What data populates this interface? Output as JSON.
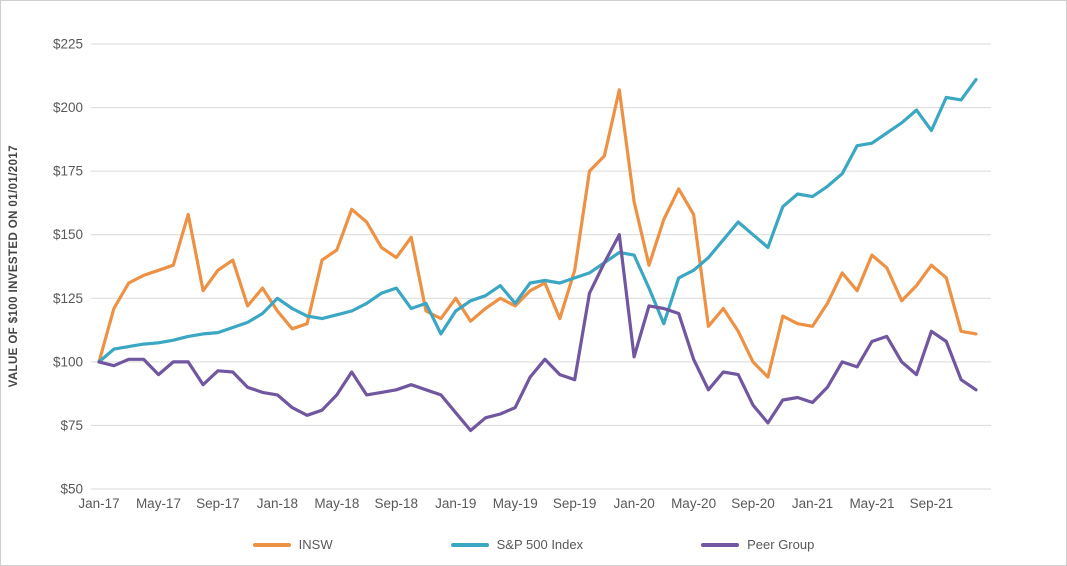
{
  "chart_data": {
    "type": "line",
    "title": "",
    "ylabel": "VALUE OF $100 INVESTED ON 01/01/2017",
    "xlabel": "",
    "ylim": [
      50,
      225
    ],
    "y_ticks": [
      225,
      200,
      175,
      150,
      125,
      100,
      75,
      50
    ],
    "y_tick_prefix": "$",
    "grid": true,
    "legend_position": "bottom",
    "grid_color": "#d9d9d9",
    "axis_text_color": "#595959",
    "x_tick_labels": [
      "Jan-17",
      "May-17",
      "Sep-17",
      "Jan-18",
      "May-18",
      "Sep-18",
      "Jan-19",
      "May-19",
      "Sep-19",
      "Jan-20",
      "May-20",
      "Sep-20",
      "Jan-21",
      "May-21",
      "Sep-21"
    ],
    "categories": [
      "Jan-17",
      "Feb-17",
      "Mar-17",
      "Apr-17",
      "May-17",
      "Jun-17",
      "Jul-17",
      "Aug-17",
      "Sep-17",
      "Oct-17",
      "Nov-17",
      "Dec-17",
      "Jan-18",
      "Feb-18",
      "Mar-18",
      "Apr-18",
      "May-18",
      "Jun-18",
      "Jul-18",
      "Aug-18",
      "Sep-18",
      "Oct-18",
      "Nov-18",
      "Dec-18",
      "Jan-19",
      "Feb-19",
      "Mar-19",
      "Apr-19",
      "May-19",
      "Jun-19",
      "Jul-19",
      "Aug-19",
      "Sep-19",
      "Oct-19",
      "Nov-19",
      "Dec-19",
      "Jan-20",
      "Feb-20",
      "Mar-20",
      "Apr-20",
      "May-20",
      "Jun-20",
      "Jul-20",
      "Aug-20",
      "Sep-20",
      "Oct-20",
      "Nov-20",
      "Dec-20",
      "Jan-21",
      "Feb-21",
      "Mar-21",
      "Apr-21",
      "May-21",
      "Jun-21",
      "Jul-21",
      "Aug-21",
      "Sep-21",
      "Oct-21",
      "Nov-21",
      "Dec-21"
    ],
    "series": [
      {
        "name": "INSW",
        "color": "#ED9144",
        "values": [
          100,
          121,
          131,
          134,
          136,
          138,
          158,
          128,
          136,
          140,
          122,
          129,
          120,
          113,
          115,
          140,
          144,
          160,
          155,
          145,
          141,
          149,
          120,
          117,
          125,
          116,
          121,
          125,
          122,
          128,
          131,
          117,
          136,
          175,
          181,
          207,
          163,
          138,
          156,
          168,
          158,
          114,
          121,
          112,
          100,
          94,
          118,
          115,
          114,
          123,
          135,
          128,
          142,
          137,
          124,
          130,
          138,
          133,
          112,
          111
        ]
      },
      {
        "name": "S&P 500 Index",
        "color": "#3BA7C2",
        "values": [
          100,
          105,
          106,
          107,
          107.5,
          108.5,
          110,
          111,
          111.5,
          113.5,
          115.5,
          119,
          125,
          121,
          118,
          117,
          118.5,
          120,
          123,
          127,
          129,
          121,
          123,
          111,
          120,
          124,
          126,
          130,
          123,
          131,
          132,
          131,
          133,
          135,
          139,
          143,
          142,
          129,
          115,
          133,
          136,
          141,
          148,
          155,
          150,
          145,
          161,
          166,
          165,
          169,
          174,
          185,
          186,
          190,
          194,
          199,
          191,
          204,
          203,
          211
        ]
      },
      {
        "name": "Peer Group",
        "color": "#7156A0",
        "values": [
          100,
          98.5,
          101,
          101,
          95,
          100,
          100,
          91,
          96.5,
          96,
          90,
          88,
          87,
          82,
          79,
          81,
          87,
          96,
          87,
          88,
          89,
          91,
          89,
          87,
          80,
          73,
          78,
          79.5,
          82,
          94,
          101,
          95,
          93,
          127,
          139,
          150,
          102,
          122,
          121,
          119,
          101,
          89,
          96,
          95,
          83,
          76,
          85,
          86,
          84,
          90,
          100,
          98,
          108,
          110,
          100,
          95,
          112,
          108,
          93,
          89
        ]
      }
    ]
  }
}
